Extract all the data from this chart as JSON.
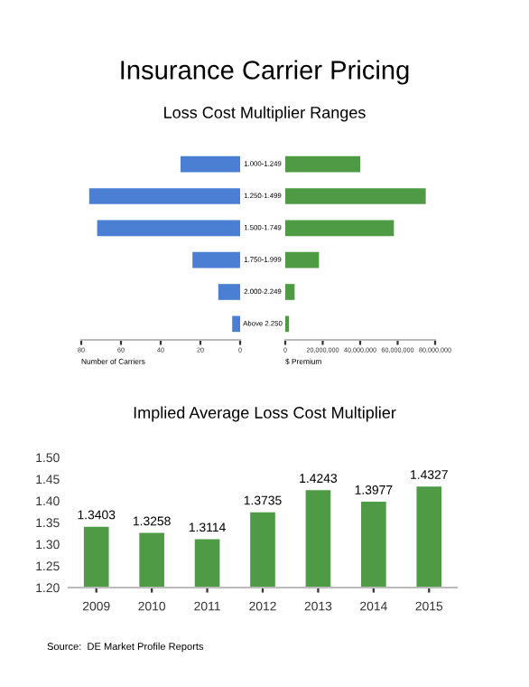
{
  "chart_data": [
    {
      "type": "bar",
      "title": "Insurance Carrier Pricing",
      "subtitle": "Loss Cost Multiplier Ranges",
      "orientation": "horizontal",
      "xlabel": "Number of Carriers",
      "categories": [
        "1.000-1.249",
        "1.250-1.499",
        "1.500-1.749",
        "1.750-1.999",
        "2.000-2.249",
        "Above 2.250"
      ],
      "values": [
        30,
        76,
        72,
        24,
        11,
        4
      ],
      "color": "#4a7fd4",
      "xlim": [
        80,
        0
      ],
      "xticks": [
        80,
        60,
        40,
        20,
        0
      ]
    },
    {
      "type": "bar",
      "orientation": "horizontal",
      "xlabel": "$ Premium",
      "tick_labels": "x",
      "values": [
        40000000,
        75000000,
        58000000,
        18000000,
        5000000,
        2000000
      ],
      "color": "#4e9a45",
      "xlim": [
        0,
        80000000
      ],
      "xticks": [
        {
          "value": 0,
          "label": "0"
        },
        {
          "value": 20000000,
          "label": "20,000,000"
        },
        {
          "value": 40000000,
          "label": "40,000,000"
        },
        {
          "value": 60000000,
          "label": "60,000,000"
        },
        {
          "value": 80000000,
          "label": "80,000,000"
        }
      ]
    },
    {
      "type": "bar",
      "title": "Implied Average Loss Cost Multiplier",
      "categories": [
        "2009",
        "2010",
        "2011",
        "2012",
        "2013",
        "2014",
        "2015"
      ],
      "values": [
        1.3403,
        1.3258,
        1.3114,
        1.3735,
        1.4243,
        1.3977,
        1.4327
      ],
      "color": "#4e9a45",
      "data_labels": true,
      "ylim": [
        1.2,
        1.5
      ],
      "yticks": [
        {
          "value": 1.2,
          "label": "1.20"
        },
        {
          "value": 1.25,
          "label": "1.25"
        },
        {
          "value": 1.3,
          "label": "1.30"
        },
        {
          "value": 1.35,
          "label": "1.35"
        },
        {
          "value": 1.4,
          "label": "1.40"
        },
        {
          "value": 1.45,
          "label": "1.45"
        },
        {
          "value": 1.5,
          "label": "1.50"
        }
      ],
      "annotations": [
        "Source:  DE Market Profile Reports"
      ]
    }
  ]
}
